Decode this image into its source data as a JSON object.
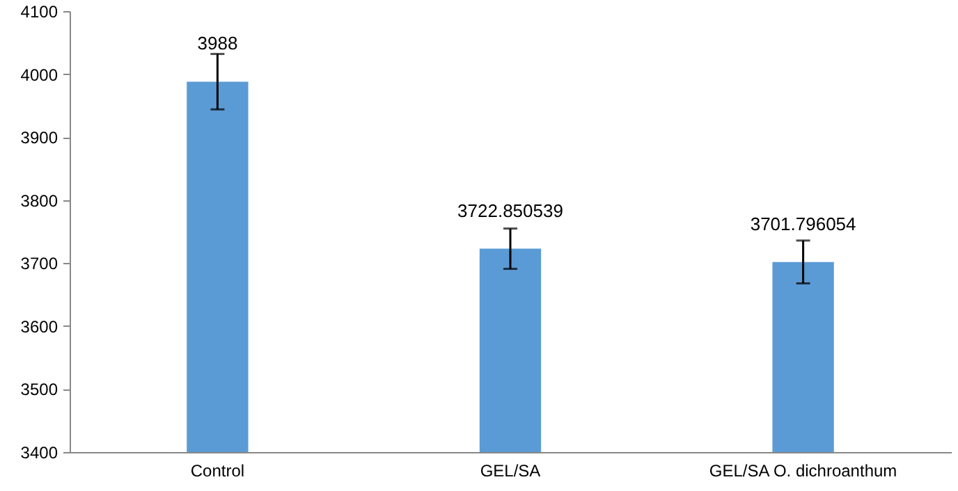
{
  "chart_data": {
    "type": "bar",
    "categories": [
      "Control",
      "GEL/SA",
      "GEL/SA O. dichroanthum"
    ],
    "values": [
      3988,
      3722.850539,
      3701.796054
    ],
    "errors": [
      44,
      32,
      34
    ],
    "color": "#5b9bd5",
    "ylim": [
      3400,
      4100
    ],
    "yticks": [
      3400,
      3500,
      3600,
      3700,
      3800,
      3900,
      4000,
      4100
    ],
    "data_labels": true
  }
}
